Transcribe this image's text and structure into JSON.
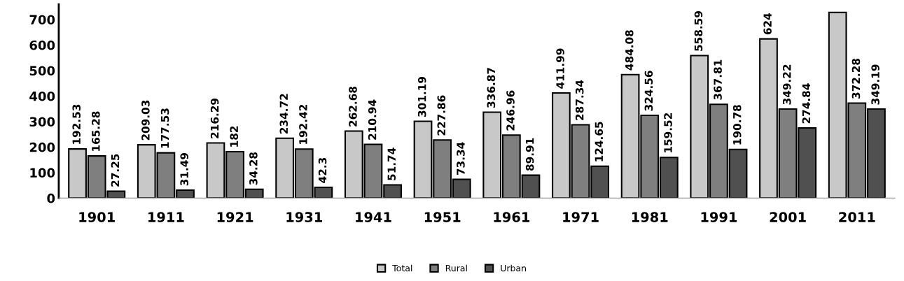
{
  "chart_data": {
    "type": "bar",
    "categories": [
      "1901",
      "1911",
      "1921",
      "1931",
      "1941",
      "1951",
      "1961",
      "1971",
      "1981",
      "1991",
      "2001",
      "2011"
    ],
    "series": [
      {
        "name": "Total",
        "color": "#c8c8c8",
        "values": [
          192.53,
          209.03,
          216.29,
          234.72,
          262.68,
          301.19,
          336.87,
          411.99,
          484.08,
          558.59,
          624,
          728
        ],
        "value_labels": [
          "192.53",
          "209.03",
          "216.29",
          "234.72",
          "262.68",
          "301.19",
          "336.87",
          "411.99",
          "484.08",
          "558.59",
          "624",
          null
        ]
      },
      {
        "name": "Rural",
        "color": "#7f7f7f",
        "values": [
          165.28,
          177.53,
          182,
          192.42,
          210.94,
          227.86,
          246.96,
          287.34,
          324.56,
          367.81,
          349.22,
          372.28
        ],
        "value_labels": [
          "165.28",
          "177.53",
          "182",
          "192.42",
          "210.94",
          "227.86",
          "246.96",
          "287.34",
          "324.56",
          "367.81",
          "349.22",
          "372.28"
        ]
      },
      {
        "name": "Urban",
        "color": "#505050",
        "values": [
          27.25,
          31.49,
          34.28,
          42.3,
          51.74,
          73.34,
          89.91,
          124.65,
          159.52,
          190.78,
          274.84,
          349.19
        ],
        "value_labels": [
          "27.25",
          "31.49",
          "34.28",
          "42.3",
          "51.74",
          "73.34",
          "89.91",
          "124.65",
          "159.52",
          "190.78",
          "274.84",
          "349.19"
        ]
      }
    ],
    "ylim": [
      0,
      760
    ],
    "yticks": [
      0,
      100,
      200,
      300,
      400,
      500,
      600,
      700
    ],
    "grid": false,
    "legend": "bottom"
  }
}
